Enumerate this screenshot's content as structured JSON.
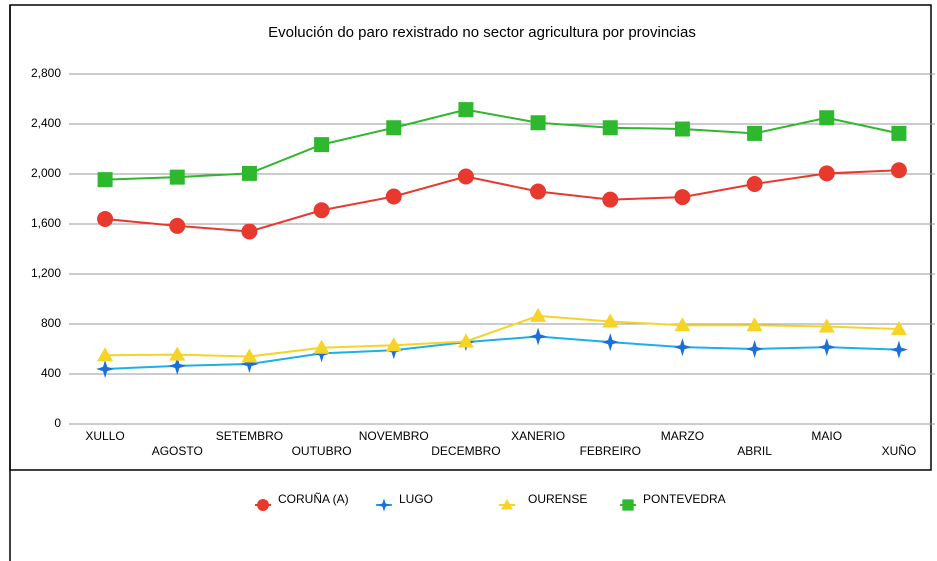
{
  "chart_data": {
    "type": "line",
    "title": "Evolución do paro rexistrado no sector agricultura por provincias",
    "categories": [
      "XULLO",
      "AGOSTO",
      "SETEMBRO",
      "OUTUBRO",
      "NOVEMBRO",
      "DECEMBRO",
      "XANERIO",
      "FEBREIRO",
      "MARZO",
      "ABRIL",
      "MAIO",
      "XUÑO"
    ],
    "series": [
      {
        "name": "CORUÑA (A)",
        "color": "#e8392f",
        "marker": "circle",
        "values": [
          1640,
          1585,
          1540,
          1710,
          1820,
          1980,
          1860,
          1795,
          1815,
          1920,
          2005,
          2030
        ]
      },
      {
        "name": "LUGO",
        "color": "#1ab0e8",
        "marker": "star",
        "values": [
          440,
          465,
          480,
          565,
          590,
          655,
          700,
          655,
          615,
          600,
          615,
          595
        ]
      },
      {
        "name": "OURENSE",
        "color": "#f5d327",
        "marker": "triangle",
        "values": [
          550,
          555,
          540,
          610,
          630,
          660,
          865,
          820,
          790,
          790,
          780,
          760
        ]
      },
      {
        "name": "PONTEVEDRA",
        "color": "#2db82d",
        "marker": "square",
        "values": [
          1955,
          1975,
          2005,
          2235,
          2370,
          2515,
          2410,
          2370,
          2360,
          2325,
          2450,
          2325
        ]
      }
    ],
    "ylim": [
      0,
      2800
    ],
    "yticks": [
      0,
      400,
      800,
      {
        "value": 1200,
        "label": "1,200"
      },
      {
        "value": 1600,
        "label": "1,600"
      },
      {
        "value": 2000,
        "label": "2,000"
      },
      {
        "value": 2400,
        "label": "2,400"
      },
      {
        "value": 2800,
        "label": "2,800"
      }
    ],
    "grid": true
  }
}
